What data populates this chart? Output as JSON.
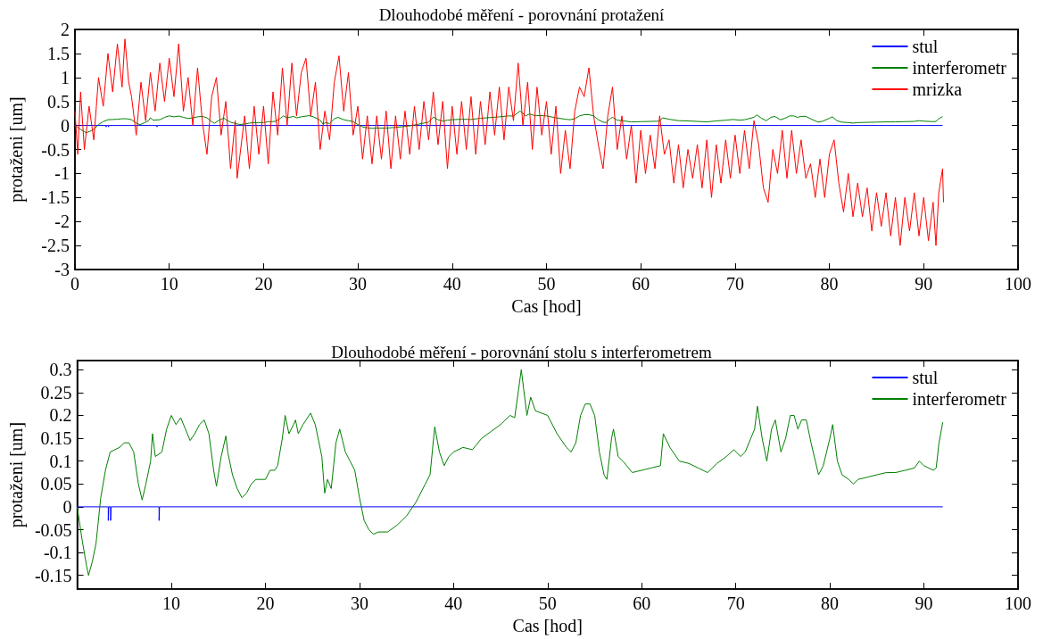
{
  "chart_data": [
    {
      "type": "line",
      "title": "Dlouhodobé měření - porovnání protažení",
      "xlabel": "Cas [hod]",
      "ylabel": "protaženi [um]",
      "xlim": [
        0,
        100
      ],
      "xticks": [
        0,
        10,
        20,
        30,
        40,
        50,
        60,
        70,
        80,
        90,
        100
      ],
      "ylim": [
        -3,
        2
      ],
      "yticks": [
        -3,
        -2.5,
        -2,
        -1.5,
        -1,
        -0.5,
        0,
        0.5,
        1,
        1.5,
        2
      ],
      "grid": false,
      "legend": "top right",
      "series": [
        {
          "name": "stul",
          "color": "#0000ff",
          "x": [
            0,
            3.3,
            3.3,
            3.35,
            3.55,
            3.55,
            3.6,
            8.7,
            8.7,
            8.75,
            92
          ],
          "values": [
            0,
            0,
            -0.03,
            0,
            0,
            -0.03,
            0,
            0,
            -0.03,
            0,
            0
          ]
        },
        {
          "name": "interferometr",
          "color": "#008000",
          "x": [
            0,
            0.5,
            1,
            1.2,
            1.6,
            2,
            2.5,
            3,
            3.5,
            4,
            4.5,
            5,
            5.5,
            6,
            6.5,
            6.9,
            7.3,
            7.8,
            8,
            8.3,
            9,
            9.5,
            10,
            10.5,
            11,
            11.5,
            12,
            12.5,
            13,
            13.5,
            14,
            14.5,
            14.8,
            15.3,
            15.8,
            16,
            16.5,
            17,
            17.5,
            18,
            18.5,
            19,
            20,
            20.5,
            21,
            21.3,
            21.8,
            22.1,
            22.5,
            23,
            23.2,
            23.5,
            24,
            24.8,
            25.3,
            26,
            26.3,
            26.6,
            27,
            27.5,
            27.9,
            28.5,
            29,
            29.5,
            30,
            30.5,
            31,
            31.5,
            32,
            33,
            34,
            35,
            36,
            37,
            37.5,
            38,
            38.5,
            39,
            39.5,
            40,
            41,
            42,
            43,
            44,
            45,
            46,
            46.5,
            47.2,
            47.8,
            48.2,
            48.7,
            50,
            51,
            52,
            52.5,
            53,
            53.5,
            54,
            54.5,
            55,
            55.5,
            56,
            56.3,
            56.8,
            57,
            57.5,
            58,
            59,
            60,
            61,
            62,
            62.3,
            63,
            64,
            65,
            66,
            67,
            68,
            69,
            69.8,
            70.5,
            71,
            72,
            72.3,
            72.8,
            73.3,
            73.8,
            74.2,
            74.8,
            75.3,
            75.8,
            76.2,
            76.6,
            77,
            77.5,
            78,
            78.8,
            79.3,
            80,
            80.3,
            80.8,
            81.3,
            82,
            82.5,
            83,
            84,
            85,
            86,
            87,
            88,
            89,
            89.5,
            90,
            91,
            91.3,
            91.6,
            92
          ],
          "values": [
            0,
            -0.07,
            -0.13,
            -0.15,
            -0.12,
            -0.08,
            0.02,
            0.08,
            0.12,
            0.125,
            0.13,
            0.14,
            0.14,
            0.12,
            0.05,
            0.015,
            0.05,
            0.1,
            0.16,
            0.11,
            0.12,
            0.17,
            0.2,
            0.18,
            0.195,
            0.17,
            0.145,
            0.16,
            0.18,
            0.19,
            0.16,
            0.08,
            0.045,
            0.11,
            0.155,
            0.12,
            0.07,
            0.04,
            0.02,
            0.03,
            0.05,
            0.06,
            0.06,
            0.08,
            0.08,
            0.09,
            0.15,
            0.2,
            0.16,
            0.18,
            0.19,
            0.16,
            0.18,
            0.205,
            0.18,
            0.11,
            0.03,
            0.06,
            0.04,
            0.14,
            0.17,
            0.12,
            0.1,
            0.08,
            0.02,
            -0.03,
            -0.05,
            -0.06,
            -0.055,
            -0.055,
            -0.04,
            -0.02,
            0.01,
            0.05,
            0.07,
            0.175,
            0.12,
            0.09,
            0.11,
            0.12,
            0.13,
            0.125,
            0.15,
            0.165,
            0.18,
            0.2,
            0.195,
            0.3,
            0.2,
            0.24,
            0.21,
            0.2,
            0.16,
            0.13,
            0.12,
            0.14,
            0.2,
            0.225,
            0.225,
            0.2,
            0.12,
            0.07,
            0.06,
            0.15,
            0.17,
            0.11,
            0.1,
            0.075,
            0.08,
            0.085,
            0.09,
            0.16,
            0.13,
            0.1,
            0.095,
            0.085,
            0.075,
            0.095,
            0.11,
            0.125,
            0.11,
            0.12,
            0.17,
            0.22,
            0.15,
            0.1,
            0.17,
            0.19,
            0.12,
            0.15,
            0.2,
            0.2,
            0.17,
            0.19,
            0.19,
            0.14,
            0.07,
            0.09,
            0.15,
            0.18,
            0.1,
            0.07,
            0.06,
            0.05,
            0.06,
            0.065,
            0.07,
            0.075,
            0.075,
            0.08,
            0.085,
            0.1,
            0.09,
            0.08,
            0.085,
            0.14,
            0.185
          ]
        },
        {
          "name": "mrizka",
          "color": "#ff0000",
          "x": [
            0,
            0.3,
            0.6,
            1,
            1.5,
            2,
            2.5,
            3,
            3.5,
            4,
            4.5,
            5,
            5.3,
            5.7,
            6,
            6.5,
            7,
            7.5,
            8,
            8.5,
            9,
            9.5,
            10,
            10.5,
            11,
            11.5,
            12,
            12.5,
            13,
            13.5,
            14,
            14.5,
            15,
            15.5,
            16,
            16.5,
            17,
            17.2,
            18,
            18.5,
            19,
            19.5,
            20,
            20.5,
            21,
            21.5,
            22,
            22.5,
            23,
            23.5,
            24,
            24.5,
            25,
            25.5,
            26,
            26.5,
            27,
            27.5,
            28,
            28.5,
            29,
            29.5,
            30,
            30.5,
            31,
            31.5,
            32,
            32.5,
            33,
            33.5,
            34,
            34.5,
            35,
            35.5,
            36,
            36.5,
            37,
            37.5,
            38,
            38.5,
            39,
            39.5,
            40,
            40.5,
            41,
            41.5,
            42,
            42.5,
            43,
            43.5,
            44,
            44.5,
            45,
            45.5,
            46,
            46.5,
            47,
            47.5,
            48,
            48.5,
            49,
            49.5,
            50,
            50.5,
            51,
            51.5,
            52,
            52.5,
            53,
            53.5,
            54,
            54.5,
            55,
            55.5,
            56,
            56.5,
            57,
            57.5,
            58,
            58.5,
            59,
            59.5,
            60,
            60.5,
            61,
            61.5,
            62,
            62.5,
            63,
            63.5,
            64,
            64.5,
            65,
            65.5,
            66,
            66.5,
            67,
            67.5,
            68,
            68.5,
            69,
            69.5,
            70,
            70.5,
            71,
            71.5,
            72,
            72.5,
            73,
            73.5,
            74,
            74.5,
            75,
            75.5,
            76,
            76.5,
            77,
            77.5,
            78,
            78.5,
            79,
            79.5,
            80,
            80.5,
            81,
            81.5,
            82,
            82.5,
            83,
            83.5,
            84,
            84.5,
            85,
            85.5,
            86,
            86.5,
            87,
            87.5,
            88,
            88.5,
            89,
            89.5,
            90,
            90.5,
            91,
            91.3,
            91.6,
            92,
            92.1
          ],
          "values": [
            0.3,
            -0.6,
            0.7,
            -0.5,
            0.4,
            -0.3,
            1.0,
            0.4,
            1.5,
            0.7,
            1.7,
            0.8,
            1.8,
            0.9,
            0.6,
            -0.2,
            0.9,
            0.1,
            1.1,
            0.3,
            1.3,
            0.5,
            1.4,
            0.6,
            1.7,
            0.3,
            1.0,
            0.0,
            1.2,
            0.1,
            -0.6,
            0.6,
            1.0,
            -0.2,
            0.5,
            -0.9,
            0.1,
            -1.1,
            0.2,
            -0.9,
            0.4,
            -0.6,
            0.4,
            -0.8,
            0.7,
            -0.2,
            1.2,
            0.0,
            1.3,
            0.2,
            1.1,
            1.4,
            0.2,
            0.9,
            -0.5,
            0.3,
            -0.3,
            0.9,
            1.45,
            0.3,
            1.1,
            -0.2,
            0.4,
            -0.7,
            0.2,
            -0.8,
            0.2,
            -0.7,
            0.3,
            -0.9,
            0.2,
            -0.7,
            0.3,
            -0.6,
            0.4,
            -0.5,
            0.5,
            -0.3,
            0.7,
            -0.4,
            0.5,
            -0.9,
            0.4,
            -0.6,
            0.5,
            -0.5,
            0.6,
            -0.6,
            0.5,
            -0.4,
            0.7,
            -0.2,
            0.8,
            -0.3,
            0.8,
            0.1,
            1.3,
            0.0,
            0.9,
            -0.5,
            0.8,
            -0.2,
            0.5,
            -0.6,
            0.4,
            -1.0,
            -0.1,
            -0.9,
            0.3,
            0.8,
            0.6,
            1.2,
            0.2,
            -0.4,
            -0.9,
            0.2,
            0.8,
            -0.5,
            0.2,
            -0.7,
            0.0,
            -1.2,
            -0.1,
            -1.0,
            -0.2,
            -0.9,
            0.2,
            -0.6,
            -0.3,
            -1.2,
            -0.4,
            -1.3,
            -0.5,
            -1.1,
            -0.4,
            -1.3,
            -0.3,
            -1.5,
            -0.4,
            -1.2,
            -0.3,
            -1.1,
            -0.2,
            -1.0,
            -0.1,
            -0.9,
            0.1,
            -0.4,
            -1.3,
            -1.6,
            -0.5,
            -1.0,
            -0.1,
            -1.1,
            -0.1,
            -1.0,
            -0.3,
            -1.1,
            -0.8,
            -1.5,
            -0.7,
            -1.5,
            -0.6,
            -0.3,
            -1.2,
            -1.8,
            -1.0,
            -1.9,
            -1.2,
            -1.9,
            -1.3,
            -2.2,
            -1.4,
            -2.1,
            -1.4,
            -2.3,
            -1.5,
            -2.5,
            -1.5,
            -2.2,
            -1.4,
            -2.3,
            -1.5,
            -2.4,
            -1.6,
            -2.5,
            -1.4,
            -0.9,
            -1.6
          ]
        }
      ]
    },
    {
      "type": "line",
      "title": "Dlouhodobé měření - porovnání stolu s interferometrem",
      "xlabel": "Cas [hod]",
      "ylabel": "protaženi [um]",
      "xlim": [
        0,
        100
      ],
      "xticks": [
        10,
        20,
        30,
        40,
        50,
        60,
        70,
        80,
        90,
        100
      ],
      "ylim": [
        -0.18,
        0.32
      ],
      "yticks": [
        -0.15,
        -0.1,
        -0.05,
        0,
        0.05,
        0.1,
        0.15,
        0.2,
        0.25,
        0.3
      ],
      "grid": false,
      "legend": "top right",
      "series": [
        {
          "name": "stul",
          "color": "#0000ff",
          "x": [
            0,
            3.3,
            3.3,
            3.35,
            3.55,
            3.55,
            3.6,
            8.7,
            8.7,
            8.75,
            92
          ],
          "values": [
            0,
            0,
            -0.03,
            0,
            0,
            -0.03,
            0,
            0,
            -0.03,
            0,
            0
          ]
        },
        {
          "name": "interferometr",
          "color": "#008000",
          "x": [
            0,
            0.5,
            1,
            1.2,
            1.6,
            2,
            2.5,
            3,
            3.5,
            4,
            4.5,
            5,
            5.5,
            6,
            6.5,
            6.9,
            7.3,
            7.8,
            8,
            8.3,
            9,
            9.5,
            10,
            10.5,
            11,
            11.5,
            12,
            12.5,
            13,
            13.5,
            14,
            14.5,
            14.8,
            15.3,
            15.8,
            16,
            16.5,
            17,
            17.5,
            18,
            18.5,
            19,
            20,
            20.5,
            21,
            21.3,
            21.8,
            22.1,
            22.5,
            23,
            23.2,
            23.5,
            24,
            24.8,
            25.3,
            26,
            26.3,
            26.6,
            27,
            27.5,
            27.9,
            28.5,
            29,
            29.5,
            30,
            30.5,
            31,
            31.5,
            32,
            33,
            34,
            35,
            36,
            37,
            37.5,
            38,
            38.5,
            39,
            39.5,
            40,
            41,
            42,
            43,
            44,
            45,
            46,
            46.5,
            47.2,
            47.8,
            48.2,
            48.7,
            50,
            51,
            52,
            52.5,
            53,
            53.5,
            54,
            54.5,
            55,
            55.5,
            56,
            56.3,
            56.8,
            57,
            57.5,
            58,
            59,
            60,
            61,
            62,
            62.3,
            63,
            64,
            65,
            66,
            67,
            68,
            69,
            69.8,
            70.5,
            71,
            72,
            72.3,
            72.8,
            73.3,
            73.8,
            74.2,
            74.8,
            75.3,
            75.8,
            76.2,
            76.6,
            77,
            77.5,
            78,
            78.8,
            79.3,
            80,
            80.3,
            80.8,
            81.3,
            82,
            82.5,
            83,
            84,
            85,
            86,
            87,
            88,
            89,
            89.5,
            90,
            91,
            91.3,
            91.6,
            92
          ],
          "values": [
            0,
            -0.07,
            -0.13,
            -0.15,
            -0.12,
            -0.08,
            0.02,
            0.08,
            0.12,
            0.125,
            0.13,
            0.14,
            0.14,
            0.12,
            0.05,
            0.015,
            0.05,
            0.1,
            0.16,
            0.11,
            0.12,
            0.17,
            0.2,
            0.18,
            0.195,
            0.17,
            0.145,
            0.16,
            0.18,
            0.19,
            0.16,
            0.08,
            0.045,
            0.11,
            0.155,
            0.12,
            0.07,
            0.04,
            0.02,
            0.03,
            0.05,
            0.06,
            0.06,
            0.08,
            0.08,
            0.09,
            0.15,
            0.2,
            0.16,
            0.18,
            0.19,
            0.16,
            0.18,
            0.205,
            0.18,
            0.11,
            0.03,
            0.06,
            0.04,
            0.14,
            0.17,
            0.12,
            0.1,
            0.08,
            0.02,
            -0.03,
            -0.05,
            -0.06,
            -0.055,
            -0.055,
            -0.04,
            -0.02,
            0.01,
            0.05,
            0.07,
            0.175,
            0.12,
            0.09,
            0.11,
            0.12,
            0.13,
            0.125,
            0.15,
            0.165,
            0.18,
            0.2,
            0.195,
            0.3,
            0.2,
            0.24,
            0.21,
            0.2,
            0.16,
            0.13,
            0.12,
            0.14,
            0.2,
            0.225,
            0.225,
            0.2,
            0.12,
            0.07,
            0.06,
            0.15,
            0.17,
            0.11,
            0.1,
            0.075,
            0.08,
            0.085,
            0.09,
            0.16,
            0.13,
            0.1,
            0.095,
            0.085,
            0.075,
            0.095,
            0.11,
            0.125,
            0.11,
            0.12,
            0.17,
            0.22,
            0.15,
            0.1,
            0.17,
            0.19,
            0.12,
            0.15,
            0.2,
            0.2,
            0.17,
            0.19,
            0.19,
            0.14,
            0.07,
            0.09,
            0.15,
            0.18,
            0.1,
            0.07,
            0.06,
            0.05,
            0.06,
            0.065,
            0.07,
            0.075,
            0.075,
            0.08,
            0.085,
            0.1,
            0.09,
            0.08,
            0.085,
            0.14,
            0.185
          ]
        }
      ]
    }
  ]
}
